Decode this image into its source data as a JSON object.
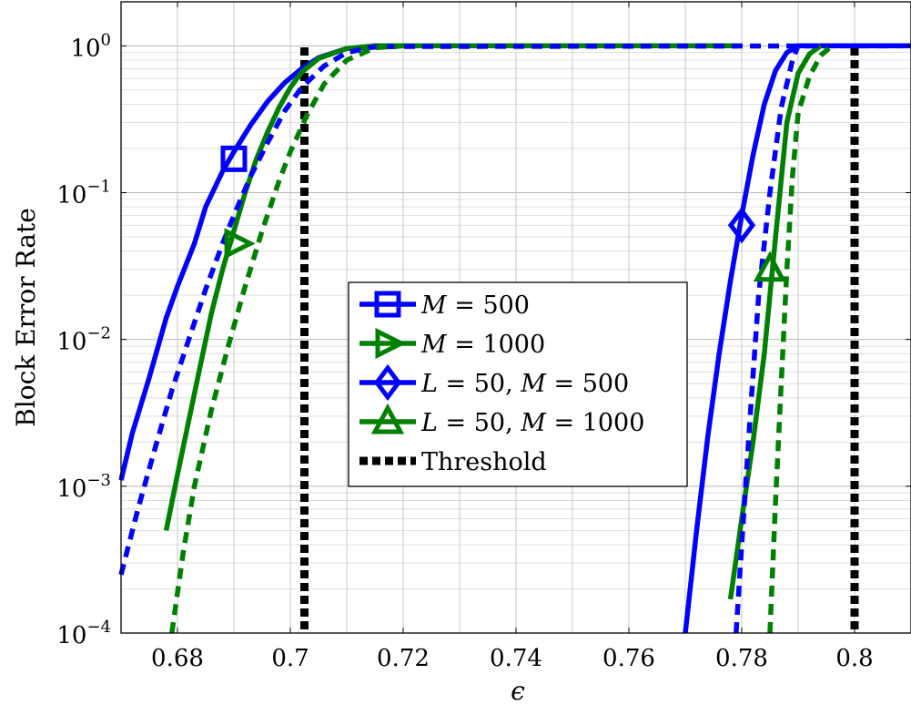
{
  "chart_data": {
    "type": "line",
    "xlabel": "ϵ",
    "ylabel": "Block Error Rate",
    "xlim": [
      0.67,
      0.81
    ],
    "ylim_log10": [
      -4,
      0.3
    ],
    "y_scale": "log",
    "grid": true,
    "legend_position": "center",
    "x_ticks": [
      0.68,
      0.7,
      0.72,
      0.74,
      0.76,
      0.78,
      0.8
    ],
    "x_tick_labels": [
      "0.68",
      "0.7",
      "0.72",
      "0.74",
      "0.76",
      "0.78",
      "0.8"
    ],
    "y_ticks": [
      0,
      -1,
      -2,
      -3,
      -4
    ],
    "y_tick_labels": [
      {
        "base": "10",
        "exp": "0"
      },
      {
        "base": "10",
        "exp": "−1"
      },
      {
        "base": "10",
        "exp": "−2"
      },
      {
        "base": "10",
        "exp": "−3"
      },
      {
        "base": "10",
        "exp": "−4"
      }
    ],
    "colors": {
      "blue": "#0000ff",
      "green": "#008000",
      "black": "#000000"
    },
    "series": [
      {
        "name": "M = 500",
        "legend_parts": [
          [
            "M",
            "it"
          ],
          [
            " = 500",
            "rm"
          ]
        ],
        "color": "#0000ff",
        "dash": "solid",
        "marker": "square",
        "marker_point": [
          0.69,
          0.17
        ],
        "x": [
          0.67,
          0.672,
          0.675,
          0.678,
          0.68,
          0.683,
          0.685,
          0.688,
          0.69,
          0.693,
          0.696,
          0.699,
          0.702,
          0.705,
          0.71,
          0.72
        ],
        "y": [
          0.0011,
          0.0023,
          0.0055,
          0.014,
          0.023,
          0.045,
          0.08,
          0.14,
          0.19,
          0.29,
          0.42,
          0.56,
          0.7,
          0.83,
          0.96,
          1.0
        ]
      },
      {
        "name": "M = 1000",
        "legend_parts": [
          [
            "M",
            "it"
          ],
          [
            " = 1000",
            "rm"
          ]
        ],
        "color": "#008000",
        "dash": "solid",
        "marker": "triangle-right",
        "marker_point": [
          0.6905,
          0.045
        ],
        "x": [
          0.678,
          0.68,
          0.682,
          0.684,
          0.686,
          0.688,
          0.69,
          0.692,
          0.694,
          0.696,
          0.698,
          0.7,
          0.702,
          0.705,
          0.71,
          0.715,
          0.72,
          0.78
        ],
        "y": [
          0.0005,
          0.0012,
          0.0028,
          0.0065,
          0.015,
          0.03,
          0.055,
          0.1,
          0.17,
          0.26,
          0.38,
          0.52,
          0.66,
          0.82,
          0.96,
          1.0,
          1.0,
          1.0
        ]
      },
      {
        "name": "M = 500 (dashed)",
        "color": "#0000ff",
        "dash": "dashed",
        "marker": "none",
        "x": [
          0.67,
          0.673,
          0.676,
          0.679,
          0.682,
          0.685,
          0.688,
          0.69,
          0.693,
          0.696,
          0.699,
          0.702,
          0.706,
          0.71,
          0.715,
          0.81
        ],
        "y": [
          0.00025,
          0.0007,
          0.0018,
          0.0045,
          0.01,
          0.022,
          0.045,
          0.07,
          0.13,
          0.22,
          0.36,
          0.52,
          0.73,
          0.9,
          0.99,
          1.0
        ]
      },
      {
        "name": "M = 1000 (dashed)",
        "color": "#008000",
        "dash": "dashed",
        "marker": "none",
        "x": [
          0.679,
          0.681,
          0.683,
          0.686,
          0.689,
          0.692,
          0.695,
          0.698,
          0.7,
          0.703,
          0.706,
          0.71,
          0.715,
          0.72
        ],
        "y": [
          0.0001,
          0.00035,
          0.001,
          0.0033,
          0.009,
          0.023,
          0.055,
          0.12,
          0.19,
          0.34,
          0.55,
          0.8,
          0.97,
          1.0
        ]
      },
      {
        "name": "L = 50, M = 500",
        "legend_parts": [
          [
            "L",
            "it"
          ],
          [
            " = 50, ",
            "rm"
          ],
          [
            "M",
            "it"
          ],
          [
            " = 500",
            "rm"
          ]
        ],
        "color": "#0000ff",
        "dash": "solid",
        "marker": "diamond",
        "marker_point": [
          0.78,
          0.06
        ],
        "x": [
          0.77,
          0.772,
          0.774,
          0.776,
          0.778,
          0.78,
          0.782,
          0.784,
          0.786,
          0.788,
          0.79,
          0.81
        ],
        "y": [
          0.0001,
          0.0005,
          0.0022,
          0.008,
          0.025,
          0.07,
          0.18,
          0.4,
          0.68,
          0.9,
          1.0,
          1.0
        ]
      },
      {
        "name": "L = 50, M = 1000",
        "legend_parts": [
          [
            "L",
            "it"
          ],
          [
            " = 50, ",
            "rm"
          ],
          [
            "M",
            "it"
          ],
          [
            " = 1000",
            "rm"
          ]
        ],
        "color": "#008000",
        "dash": "solid",
        "marker": "triangle-up",
        "marker_point": [
          0.785,
          0.03
        ],
        "x": [
          0.778,
          0.78,
          0.782,
          0.784,
          0.786,
          0.788,
          0.79,
          0.792,
          0.794
        ],
        "y": [
          0.00017,
          0.0006,
          0.002,
          0.008,
          0.05,
          0.3,
          0.65,
          0.88,
          1.0
        ]
      },
      {
        "name": "L = 50, M = 500 (dashed)",
        "color": "#0000ff",
        "dash": "dashed",
        "marker": "none",
        "x": [
          0.779,
          0.78,
          0.7815,
          0.783,
          0.785,
          0.787,
          0.789,
          0.79,
          0.81
        ],
        "y": [
          0.0001,
          0.0004,
          0.003,
          0.02,
          0.1,
          0.38,
          0.8,
          1.0,
          1.0
        ]
      },
      {
        "name": "L = 50, M = 1000 (dashed)",
        "color": "#008000",
        "dash": "dashed",
        "marker": "none",
        "x": [
          0.785,
          0.786,
          0.787,
          0.788,
          0.789,
          0.79,
          0.792,
          0.794,
          0.796
        ],
        "y": [
          0.0001,
          0.0008,
          0.005,
          0.03,
          0.13,
          0.35,
          0.62,
          0.86,
          1.0
        ]
      },
      {
        "name": "Threshold",
        "legend_parts": [
          [
            "Threshold",
            "rm"
          ]
        ],
        "color": "#000000",
        "dash": "dotted",
        "marker": "none",
        "vertical_lines": [
          0.7025,
          0.8
        ]
      }
    ],
    "legend": [
      "M = 500",
      "M = 1000",
      "L = 50, M = 500",
      "L = 50, M = 1000",
      "Threshold"
    ]
  }
}
